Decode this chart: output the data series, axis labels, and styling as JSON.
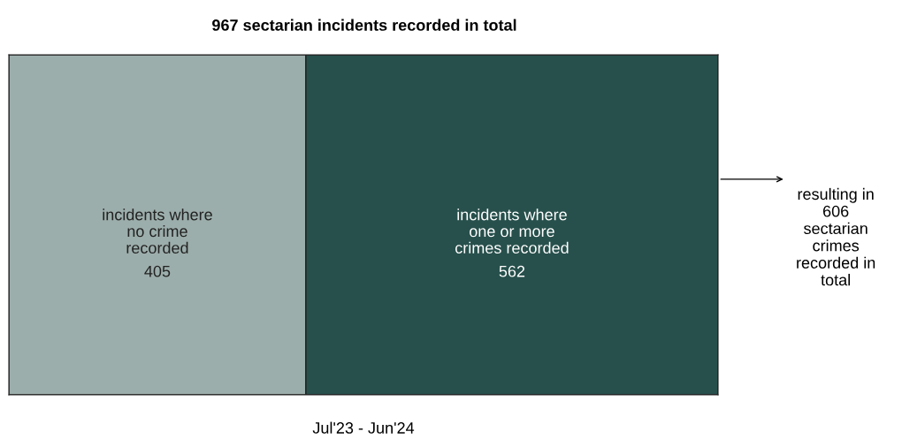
{
  "chart_data": {
    "type": "bar",
    "orientation": "horizontal",
    "stacked": true,
    "title": "967 sectarian incidents recorded in total",
    "xlabel": "Jul'23 - Jun'24",
    "categories": [
      null
    ],
    "series": [
      {
        "name": "incidents where\nno crime\nrecorded",
        "color": "#9caeab",
        "values": [
          405
        ]
      },
      {
        "name": "incidents where\none or more\ncrimes recorded",
        "color": "#27504c",
        "values": [
          562
        ]
      }
    ],
    "data_labels": true,
    "annotations": [
      "resulting in\n606\nsectarian\ncrimes\nrecorded in\ntotal"
    ]
  }
}
